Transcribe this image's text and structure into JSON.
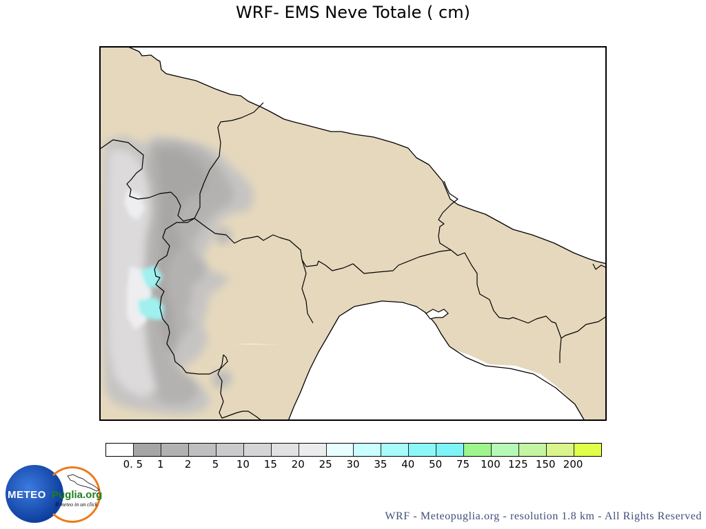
{
  "title": "WRF- EMS Neve Totale ( cm)",
  "map": {
    "land_color": "#e5d8bd",
    "sea_color": "#ffffff",
    "border_color": "#000000"
  },
  "legend": {
    "labels": [
      "0. 5",
      "1",
      "2",
      "5",
      "10",
      "15",
      "20",
      "25",
      "30",
      "35",
      "40",
      "50",
      "75",
      "100",
      "125",
      "150",
      "200"
    ],
    "colors": [
      "#ffffff",
      "#a5a5a5",
      "#b2b2b2",
      "#bfbfc1",
      "#cacacc",
      "#d5d4d7",
      "#e1e1e4",
      "#ececef",
      "#e9ffff",
      "#c9ffff",
      "#a8fbfb",
      "#8cf7f7",
      "#7ef3f8",
      "#9ef58e",
      "#b6f9b6",
      "#c4f5a2",
      "#daf58c",
      "#e0ff48"
    ]
  },
  "logo": {
    "brand_left": "METEO",
    "brand_right": "Puglia.org",
    "tagline": "Il meteo in un click",
    "primary_color": "#1550c0",
    "accent_color": "#ee7a1a",
    "brand_green": "#1f7d1a"
  },
  "footer": {
    "credit": "WRF - Meteopuglia.org - resolution 1.8 km - All Rights Reserved"
  }
}
